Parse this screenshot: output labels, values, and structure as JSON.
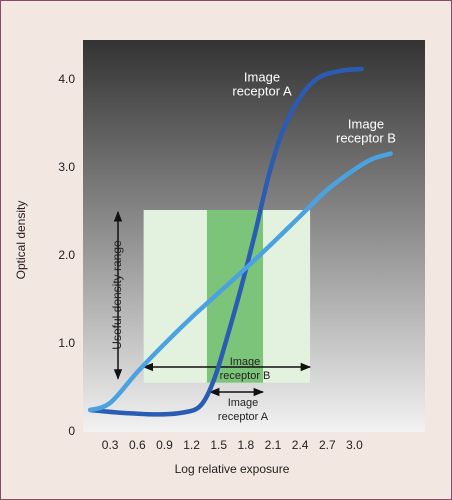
{
  "chart_data": {
    "type": "line",
    "xlabel": "Log relative exposure",
    "ylabel": "Optical density",
    "xlim": [
      0,
      3.78
    ],
    "ylim": [
      0,
      4.45
    ],
    "xticks": [
      0.3,
      0.6,
      0.9,
      1.2,
      1.5,
      1.8,
      2.1,
      2.4,
      2.7,
      {
        "value": 3,
        "label": "3.0"
      }
    ],
    "yticks": [
      0,
      {
        "value": 1,
        "label": "1.0"
      },
      {
        "value": 2,
        "label": "2.0"
      },
      {
        "value": 3,
        "label": "3.0"
      },
      {
        "value": 4,
        "label": "4.0"
      }
    ],
    "grid": false,
    "series": [
      {
        "color": "#2a5cb4",
        "x": [
          0.08,
          0.4,
          0.8,
          1.1,
          1.3,
          1.45,
          1.6,
          1.75,
          1.9,
          2.05,
          2.2,
          2.4,
          2.6,
          2.85,
          3.08
        ],
        "values": [
          0.25,
          0.22,
          0.2,
          0.22,
          0.3,
          0.6,
          1.1,
          1.65,
          2.25,
          2.9,
          3.4,
          3.8,
          4.02,
          4.1,
          4.12
        ]
      },
      {
        "color": "#4aa3e0",
        "x": [
          0.08,
          0.3,
          0.6,
          0.9,
          1.2,
          1.5,
          1.8,
          2.1,
          2.4,
          2.7,
          3.0,
          3.2,
          3.4
        ],
        "values": [
          0.25,
          0.33,
          0.68,
          1.0,
          1.3,
          1.58,
          1.86,
          2.15,
          2.45,
          2.75,
          2.98,
          3.1,
          3.16
        ]
      }
    ],
    "shaded_ranges": [
      {
        "xlim": [
          0.67,
          2.51
        ],
        "ylim": [
          0.56,
          2.52
        ],
        "color": "#e3f2df"
      },
      {
        "xlim": [
          1.37,
          1.99
        ],
        "ylim": [
          0.56,
          2.52
        ],
        "color": "#7cc47a"
      }
    ],
    "curve_labels": [
      [
        "Image",
        "receptor A"
      ],
      [
        "Image",
        "receptor B"
      ]
    ],
    "range_labels": [
      [
        "Image",
        "receptor B"
      ],
      [
        "Image",
        "receptor A"
      ]
    ],
    "density_range_label": "Useful density range"
  }
}
